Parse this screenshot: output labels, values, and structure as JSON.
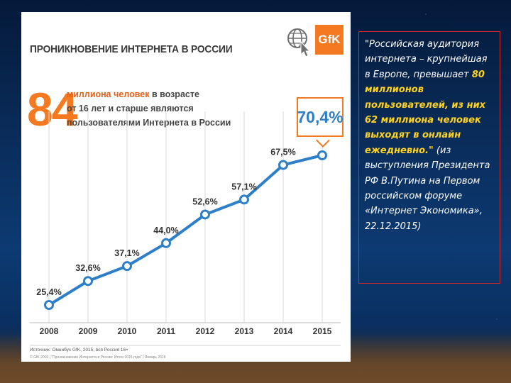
{
  "slide": {
    "panel_title": "ПРОНИКНОВЕНИЕ ИНТЕРНЕТА В РОССИИ",
    "logo_text": "GfK",
    "big_number": "84",
    "lead_highlight": "миллиона человек",
    "lead_rest_1": " в возрасте",
    "lead_line2": "от 16 лет и старше являются",
    "lead_line3": "пользователями Интернета в России",
    "callout_value": "70,4%",
    "source_line": "Источник: Омнибус GfK, 2015, вся Россия 16+",
    "source_footer": "© GfK 2016 | \"Проникновение Интернета в России: Итоги 2015 года\" | Январь 2016",
    "quote_prefix": "\"Российская аудитория интернета – крупнейшая в Европе, превышает ",
    "quote_highlight": "80 миллионов пользователей, из них 62 миллиона человек выходят в онлайн ежедневно.\"",
    "quote_suffix": " (из выступления Президента РФ В.Путина на Первом российском форуме «Интернет Экономика», 22.12.2015)"
  },
  "colors": {
    "line": "#2e7fc8",
    "accent": "#f47920",
    "grid": "#d9d9d9"
  },
  "icons": {
    "globe": "globe-cursor-icon"
  },
  "chart_data": {
    "type": "line",
    "x": [
      "2008",
      "2009",
      "2010",
      "2011",
      "2012",
      "2013",
      "2014",
      "2015"
    ],
    "values": [
      25.4,
      32.6,
      37.1,
      44.0,
      52.6,
      57.1,
      67.5,
      70.4
    ],
    "data_labels": [
      "25,4%",
      "32,6%",
      "37,1%",
      "44,0%",
      "52,6%",
      "57,1%",
      "67,5%",
      ""
    ],
    "ylim": [
      10,
      80
    ],
    "grid": "vertical"
  }
}
